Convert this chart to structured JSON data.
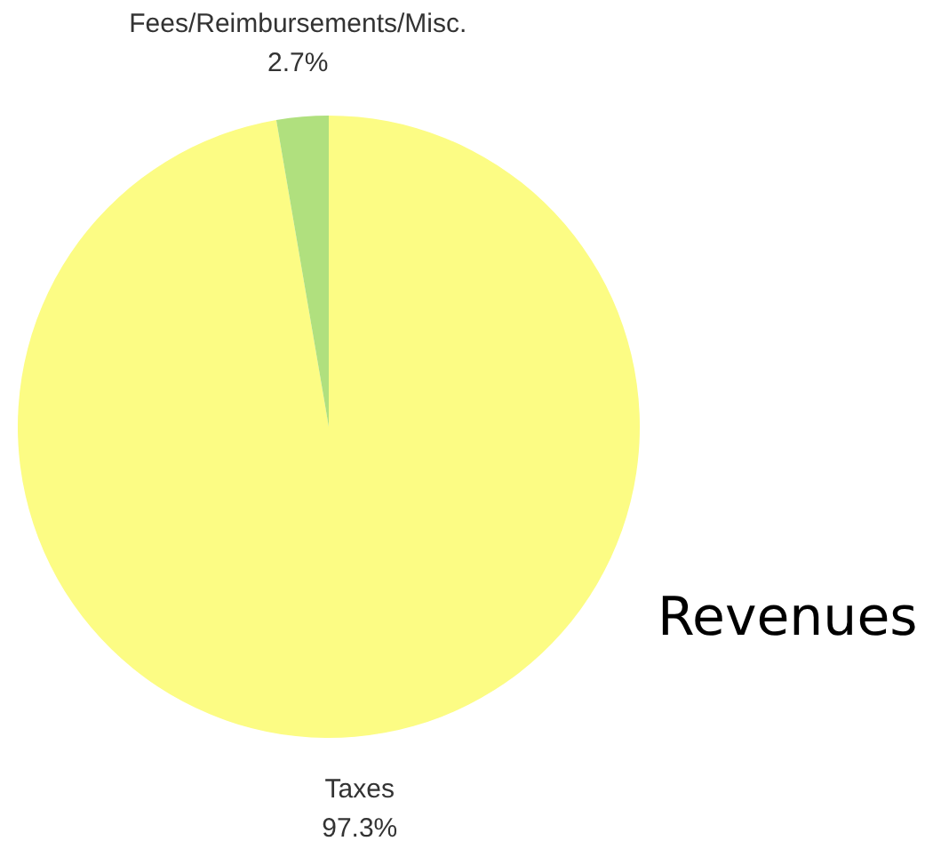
{
  "chart_data": {
    "type": "pie",
    "title": "Revenues",
    "categories": [
      "Taxes",
      "Fees/Reimbursements/Misc."
    ],
    "values": [
      97.3,
      2.7
    ],
    "value_labels": [
      "97.3%",
      "2.7%"
    ],
    "colors": [
      "#fcfc84",
      "#b0e07e"
    ],
    "legend": false
  }
}
